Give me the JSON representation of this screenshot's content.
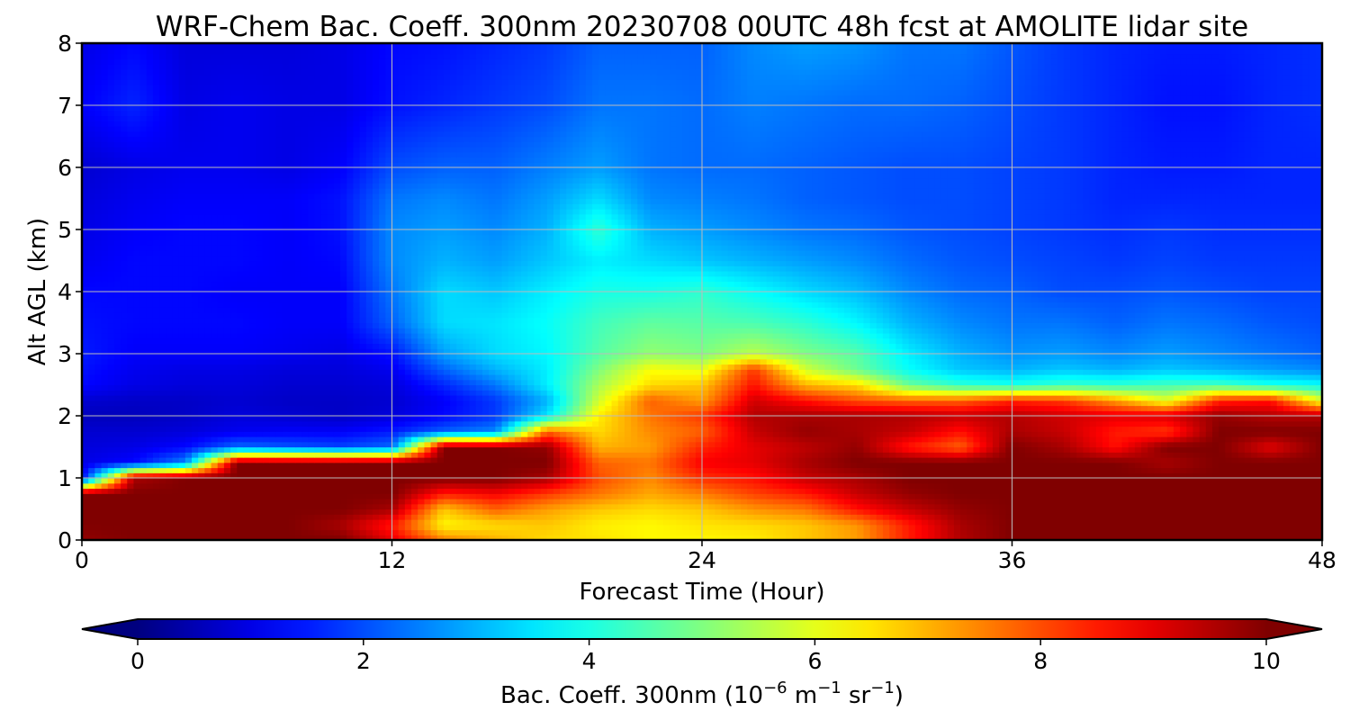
{
  "chart_data": {
    "type": "heatmap",
    "title": "WRF-Chem Bac. Coeff. 300nm  20230708 00UTC 48h fcst at AMOLITE lidar site",
    "xlabel": "Forecast Time (Hour)",
    "ylabel": "Alt AGL (km)",
    "xlim": [
      0,
      48
    ],
    "ylim": [
      0,
      8
    ],
    "xticks": [
      0,
      12,
      24,
      36,
      48
    ],
    "yticks": [
      0,
      1,
      2,
      3,
      4,
      5,
      6,
      7,
      8
    ],
    "grid": true,
    "colormap": "jet",
    "colorbar": {
      "label_main": "Bac. Coeff. 300nm  (10",
      "label_exp1": "−6",
      "label_mid": " m",
      "label_exp2": "−1",
      "label_sr": " sr",
      "label_exp3": "−1",
      "label_end": ")",
      "range": [
        0,
        10
      ],
      "ticks": [
        0,
        2,
        4,
        6,
        8,
        10
      ],
      "extend": "both",
      "orientation": "horizontal"
    },
    "x": [
      0,
      2,
      4,
      6,
      8,
      10,
      12,
      14,
      16,
      18,
      20,
      22,
      24,
      26,
      28,
      30,
      32,
      34,
      36,
      38,
      40,
      42,
      44,
      46,
      48
    ],
    "y": [
      0,
      0.25,
      0.5,
      0.75,
      1.0,
      1.25,
      1.5,
      1.75,
      2.0,
      2.25,
      2.5,
      2.75,
      3.0,
      3.5,
      4.0,
      4.5,
      5.0,
      5.5,
      6.0,
      7.0,
      8.0
    ],
    "z": [
      [
        9.8,
        10,
        10,
        10,
        10,
        10,
        9,
        7.5,
        7,
        6.6,
        6.5,
        6.3,
        6.3,
        6.4,
        6.8,
        7.2,
        8.5,
        9.5,
        10,
        10,
        10,
        10,
        10,
        10,
        10
      ],
      [
        10,
        10,
        10,
        10,
        10,
        9.6,
        8.5,
        6.3,
        6.6,
        6.8,
        6.4,
        6.3,
        6.5,
        6.6,
        6.8,
        7.3,
        8.5,
        9.6,
        10,
        10,
        10,
        10,
        10,
        10,
        10
      ],
      [
        10,
        10,
        10,
        10,
        10,
        10,
        9.6,
        6.8,
        7.8,
        7.2,
        6.8,
        6.6,
        6.8,
        7.3,
        7.6,
        8.6,
        9.3,
        9.8,
        10,
        10,
        10,
        10,
        10,
        10,
        10
      ],
      [
        10,
        10,
        10,
        10,
        10,
        10,
        10,
        8.5,
        8.8,
        8.2,
        7.6,
        7.1,
        7.5,
        8.1,
        8.5,
        9.3,
        9.8,
        10,
        10,
        10,
        10,
        10,
        10,
        10,
        10
      ],
      [
        1.2,
        9.6,
        10,
        10,
        10,
        10,
        10,
        10,
        10,
        9.6,
        8.0,
        7.4,
        8.3,
        8.6,
        9.3,
        9.6,
        10,
        10,
        10,
        10,
        10,
        10,
        10,
        10,
        10
      ],
      [
        1.0,
        1.3,
        2.6,
        10,
        10,
        10,
        10,
        10,
        10,
        10,
        7.8,
        7.6,
        8.8,
        9.0,
        9.6,
        10,
        10,
        10,
        10,
        10,
        10,
        9.6,
        10,
        10,
        10
      ],
      [
        0.9,
        1.0,
        1.3,
        2.3,
        2.1,
        1.9,
        2.3,
        10,
        10,
        9.8,
        7.0,
        7.2,
        8.4,
        9.0,
        9.4,
        9.8,
        8.5,
        7.8,
        10,
        9.6,
        8.6,
        10,
        10,
        9.0,
        10
      ],
      [
        0.8,
        0.8,
        0.9,
        1.1,
        1.2,
        1.2,
        1.5,
        2.2,
        2.6,
        7.8,
        6.6,
        7.4,
        7.8,
        9.3,
        9.8,
        9.6,
        9.3,
        8.6,
        9.6,
        9.3,
        8.5,
        8.2,
        10,
        10,
        10
      ],
      [
        0.6,
        0.6,
        0.7,
        0.9,
        0.8,
        0.7,
        0.9,
        1.3,
        1.8,
        3.5,
        6.4,
        7.6,
        8.2,
        9.5,
        9.6,
        9.6,
        9.5,
        9.3,
        9.5,
        9.2,
        9.0,
        9.1,
        9.8,
        9.5,
        9.5
      ],
      [
        0.8,
        0.7,
        0.7,
        0.8,
        0.7,
        0.7,
        0.8,
        1.2,
        1.8,
        3.0,
        5.8,
        7.8,
        7.2,
        9.2,
        8.6,
        8.0,
        7.8,
        7.8,
        8.4,
        8.2,
        7.2,
        6.0,
        8.4,
        8.6,
        6.0
      ],
      [
        1.3,
        1.0,
        0.9,
        0.9,
        0.8,
        0.8,
        0.9,
        1.6,
        2.4,
        3.6,
        5.4,
        6.6,
        6.8,
        8.6,
        7.0,
        6.6,
        4.8,
        4.2,
        4.0,
        4.3,
        4.2,
        4.4,
        4.4,
        4.0,
        3.8
      ],
      [
        1.4,
        1.1,
        1.0,
        1.0,
        0.9,
        0.9,
        1.1,
        2.2,
        3.0,
        3.6,
        5.0,
        6.2,
        6.0,
        8.2,
        5.8,
        4.8,
        3.8,
        3.2,
        3.0,
        3.2,
        3.0,
        3.2,
        3.0,
        2.8,
        2.6
      ],
      [
        1.5,
        1.2,
        1.2,
        1.2,
        1.1,
        1.0,
        1.4,
        2.8,
        3.4,
        3.7,
        4.6,
        5.2,
        5.0,
        5.6,
        5.0,
        4.6,
        3.6,
        3.0,
        2.7,
        2.8,
        2.6,
        2.8,
        2.6,
        2.4,
        2.2
      ],
      [
        1.4,
        1.3,
        1.3,
        1.3,
        1.2,
        1.2,
        2.2,
        3.4,
        3.5,
        3.8,
        4.4,
        4.7,
        4.6,
        4.5,
        4.2,
        3.7,
        3.0,
        2.6,
        2.4,
        2.4,
        2.2,
        2.4,
        2.3,
        2.1,
        2.0
      ],
      [
        1.3,
        1.3,
        1.3,
        1.2,
        1.2,
        1.2,
        2.4,
        3.4,
        3.2,
        3.6,
        4.0,
        4.0,
        4.2,
        3.8,
        3.4,
        3.1,
        2.6,
        2.3,
        2.2,
        2.0,
        2.0,
        2.1,
        2.0,
        1.9,
        1.9
      ],
      [
        1.1,
        1.3,
        1.3,
        1.3,
        1.2,
        1.3,
        2.6,
        3.0,
        2.8,
        3.2,
        3.6,
        3.4,
        3.2,
        3.0,
        2.8,
        2.6,
        2.3,
        2.1,
        2.0,
        1.9,
        1.8,
        1.9,
        1.8,
        1.8,
        1.8
      ],
      [
        1.0,
        1.2,
        1.3,
        1.3,
        1.2,
        1.4,
        2.6,
        2.8,
        2.6,
        3.0,
        4.2,
        3.0,
        2.8,
        2.6,
        2.4,
        2.3,
        2.1,
        2.0,
        1.9,
        1.8,
        1.7,
        1.8,
        1.7,
        1.7,
        1.7
      ],
      [
        0.9,
        1.1,
        1.2,
        1.2,
        1.2,
        1.4,
        2.4,
        2.6,
        2.4,
        2.8,
        3.4,
        2.6,
        2.5,
        2.4,
        2.2,
        2.1,
        2.0,
        2.0,
        1.9,
        1.8,
        1.6,
        1.6,
        1.6,
        1.6,
        1.6
      ],
      [
        0.8,
        1.0,
        1.1,
        1.1,
        1.0,
        1.2,
        2.0,
        2.2,
        2.2,
        2.5,
        2.8,
        2.4,
        2.3,
        2.3,
        2.2,
        2.1,
        2.0,
        2.0,
        1.9,
        1.8,
        1.6,
        1.5,
        1.5,
        1.6,
        1.6
      ],
      [
        1.2,
        1.6,
        1.0,
        1.1,
        1.0,
        1.0,
        1.4,
        1.6,
        1.8,
        2.0,
        2.4,
        2.4,
        2.3,
        2.5,
        2.4,
        2.3,
        2.3,
        2.2,
        2.0,
        1.8,
        1.6,
        1.4,
        1.4,
        1.6,
        1.7
      ],
      [
        1.0,
        1.3,
        0.9,
        0.9,
        0.9,
        1.0,
        1.3,
        1.4,
        1.6,
        1.8,
        2.2,
        2.2,
        2.2,
        2.6,
        2.8,
        2.7,
        2.4,
        2.4,
        2.1,
        1.8,
        1.6,
        1.5,
        1.5,
        1.6,
        1.7
      ]
    ]
  }
}
